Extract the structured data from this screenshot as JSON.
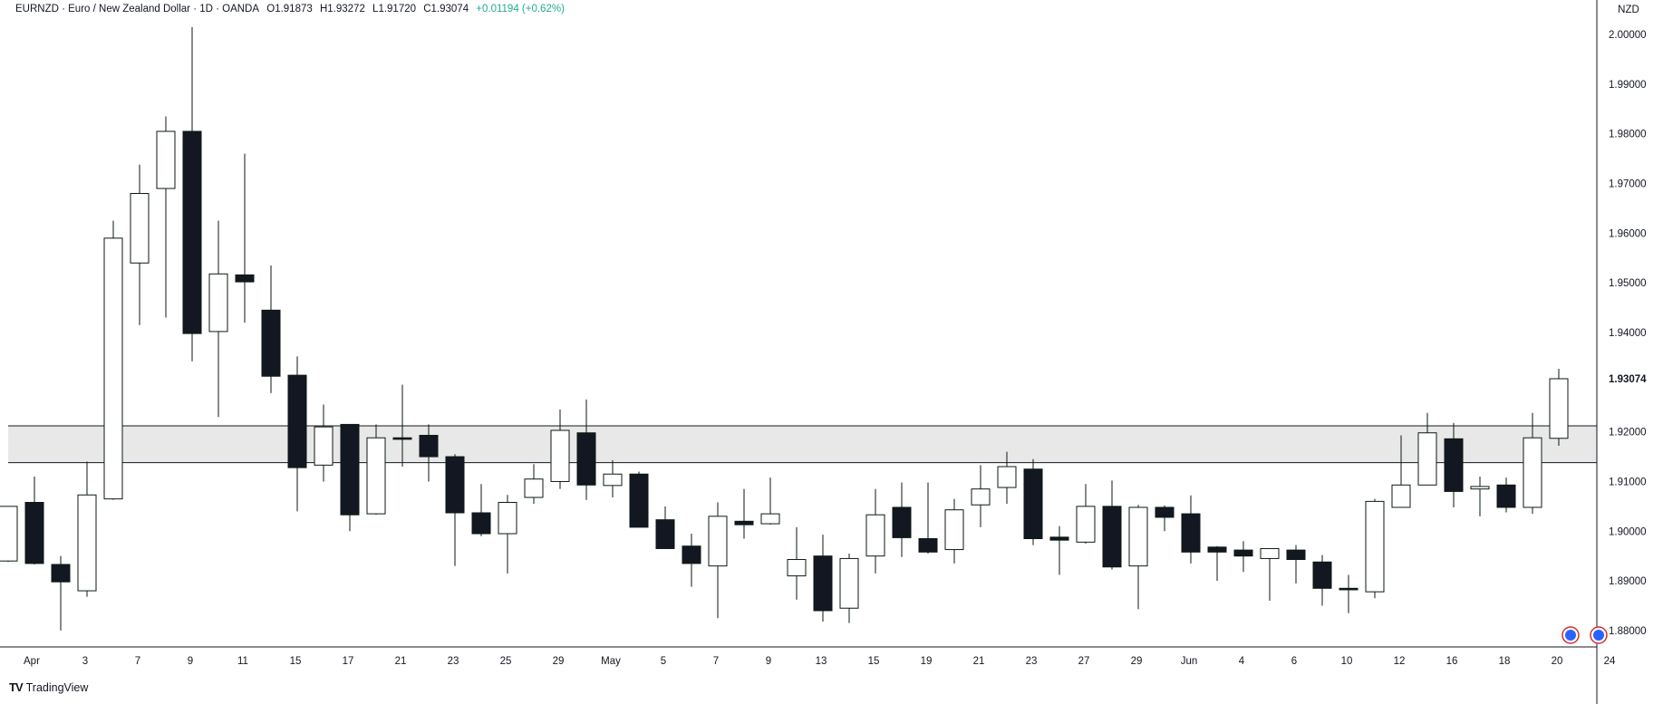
{
  "header": {
    "symbol": "EURNZD · Euro / New Zealand Dollar · 1D · OANDA",
    "open": "O1.91873",
    "high": "H1.93272",
    "low": "L1.91720",
    "close": "C1.93074",
    "change": "+0.01194 (+0.62%)"
  },
  "price_axis": {
    "currency": "NZD"
  },
  "brand": {
    "logo": "TV",
    "name": "TradingView"
  },
  "colors": {
    "up_fill": "#ffffff",
    "up_border": "#0b1a10",
    "down_fill": "#131722",
    "grid": "none",
    "zone_fill": "#e8e8e8",
    "change": "#22ab94"
  },
  "chart_data": {
    "type": "candlestick",
    "grid": false,
    "ylim": [
      1.8767,
      2.0033
    ],
    "yticks": [
      "2.00000",
      "1.99000",
      "1.98000",
      "1.97000",
      "1.96000",
      "1.95000",
      "1.94000",
      "1.93074",
      "1.92000",
      "1.91000",
      "1.90000",
      "1.89000",
      "1.88000"
    ],
    "last_price": "1.93074",
    "x_labels": [
      "Apr",
      "3",
      "7",
      "9",
      "11",
      "15",
      "17",
      "21",
      "23",
      "25",
      "29",
      "May",
      "5",
      "7",
      "9",
      "13",
      "15",
      "19",
      "21",
      "23",
      "27",
      "29",
      "Jun",
      "4",
      "6",
      "10",
      "12",
      "16",
      "18",
      "20",
      "24"
    ],
    "zone": {
      "top": 1.9212,
      "bottom": 1.9138
    },
    "candles": [
      {
        "o": 1.894,
        "h": 1.905,
        "l": 1.8938,
        "c": 1.905
      },
      {
        "o": 1.9058,
        "h": 1.911,
        "l": 1.8933,
        "c": 1.8935
      },
      {
        "o": 1.8933,
        "h": 1.895,
        "l": 1.88,
        "c": 1.8898
      },
      {
        "o": 1.888,
        "h": 1.914,
        "l": 1.8868,
        "c": 1.9073
      },
      {
        "o": 1.9065,
        "h": 1.9625,
        "l": 1.9063,
        "c": 1.959
      },
      {
        "o": 1.954,
        "h": 1.9738,
        "l": 1.9415,
        "c": 1.968
      },
      {
        "o": 1.969,
        "h": 1.9835,
        "l": 1.943,
        "c": 1.9805
      },
      {
        "o": 1.9805,
        "h": 2.0015,
        "l": 1.9342,
        "c": 1.9398
      },
      {
        "o": 1.9402,
        "h": 1.9625,
        "l": 1.923,
        "c": 1.9518
      },
      {
        "o": 1.9516,
        "h": 1.976,
        "l": 1.942,
        "c": 1.9502
      },
      {
        "o": 1.9445,
        "h": 1.9535,
        "l": 1.9278,
        "c": 1.9312
      },
      {
        "o": 1.9314,
        "h": 1.9352,
        "l": 1.904,
        "c": 1.9128
      },
      {
        "o": 1.9133,
        "h": 1.9255,
        "l": 1.91,
        "c": 1.921
      },
      {
        "o": 1.9215,
        "h": 1.9215,
        "l": 1.9,
        "c": 1.9033
      },
      {
        "o": 1.9035,
        "h": 1.9215,
        "l": 1.9033,
        "c": 1.9188
      },
      {
        "o": 1.9188,
        "h": 1.9295,
        "l": 1.913,
        "c": 1.9185
      },
      {
        "o": 1.9193,
        "h": 1.9215,
        "l": 1.91,
        "c": 1.915
      },
      {
        "o": 1.915,
        "h": 1.9155,
        "l": 1.893,
        "c": 1.9037
      },
      {
        "o": 1.9037,
        "h": 1.9095,
        "l": 1.899,
        "c": 1.8995
      },
      {
        "o": 1.8995,
        "h": 1.9073,
        "l": 1.8915,
        "c": 1.9058
      },
      {
        "o": 1.9068,
        "h": 1.9135,
        "l": 1.9055,
        "c": 1.9105
      },
      {
        "o": 1.91,
        "h": 1.9245,
        "l": 1.9085,
        "c": 1.9203
      },
      {
        "o": 1.9198,
        "h": 1.9265,
        "l": 1.9063,
        "c": 1.9093
      },
      {
        "o": 1.9092,
        "h": 1.9143,
        "l": 1.9068,
        "c": 1.9115
      },
      {
        "o": 1.9115,
        "h": 1.912,
        "l": 1.901,
        "c": 1.9008
      },
      {
        "o": 1.9023,
        "h": 1.905,
        "l": 1.8968,
        "c": 1.8965
      },
      {
        "o": 1.897,
        "h": 1.8995,
        "l": 1.8888,
        "c": 1.8935
      },
      {
        "o": 1.893,
        "h": 1.9058,
        "l": 1.8825,
        "c": 1.903
      },
      {
        "o": 1.902,
        "h": 1.9085,
        "l": 1.8985,
        "c": 1.9013
      },
      {
        "o": 1.9015,
        "h": 1.9108,
        "l": 1.9013,
        "c": 1.9035
      },
      {
        "o": 1.891,
        "h": 1.9008,
        "l": 1.8862,
        "c": 1.8943
      },
      {
        "o": 1.895,
        "h": 1.8993,
        "l": 1.8818,
        "c": 1.884
      },
      {
        "o": 1.8845,
        "h": 1.8955,
        "l": 1.8815,
        "c": 1.8945
      },
      {
        "o": 1.895,
        "h": 1.9085,
        "l": 1.8915,
        "c": 1.9033
      },
      {
        "o": 1.9048,
        "h": 1.9098,
        "l": 1.8948,
        "c": 1.8987
      },
      {
        "o": 1.8985,
        "h": 1.9098,
        "l": 1.8955,
        "c": 1.8958
      },
      {
        "o": 1.8963,
        "h": 1.9065,
        "l": 1.8935,
        "c": 1.9043
      },
      {
        "o": 1.9053,
        "h": 1.9133,
        "l": 1.9008,
        "c": 1.9085
      },
      {
        "o": 1.9088,
        "h": 1.916,
        "l": 1.9055,
        "c": 1.913
      },
      {
        "o": 1.9125,
        "h": 1.9145,
        "l": 1.8972,
        "c": 1.8985
      },
      {
        "o": 1.8988,
        "h": 1.901,
        "l": 1.8912,
        "c": 1.8982
      },
      {
        "o": 1.8978,
        "h": 1.9095,
        "l": 1.8975,
        "c": 1.905
      },
      {
        "o": 1.905,
        "h": 1.9102,
        "l": 1.8923,
        "c": 1.8928
      },
      {
        "o": 1.893,
        "h": 1.9053,
        "l": 1.8843,
        "c": 1.9048
      },
      {
        "o": 1.9048,
        "h": 1.9052,
        "l": 1.9,
        "c": 1.9028
      },
      {
        "o": 1.9035,
        "h": 1.9072,
        "l": 1.8935,
        "c": 1.8958
      },
      {
        "o": 1.8968,
        "h": 1.897,
        "l": 1.89,
        "c": 1.8958
      },
      {
        "o": 1.8962,
        "h": 1.898,
        "l": 1.8918,
        "c": 1.895
      },
      {
        "o": 1.8945,
        "h": 1.8965,
        "l": 1.886,
        "c": 1.8965
      },
      {
        "o": 1.8962,
        "h": 1.8972,
        "l": 1.8895,
        "c": 1.8943
      },
      {
        "o": 1.8938,
        "h": 1.8952,
        "l": 1.885,
        "c": 1.8885
      },
      {
        "o": 1.8885,
        "h": 1.8912,
        "l": 1.8835,
        "c": 1.8882
      },
      {
        "o": 1.8878,
        "h": 1.9065,
        "l": 1.8865,
        "c": 1.906
      },
      {
        "o": 1.9048,
        "h": 1.9193,
        "l": 1.9048,
        "c": 1.9093
      },
      {
        "o": 1.9093,
        "h": 1.9238,
        "l": 1.9093,
        "c": 1.9198
      },
      {
        "o": 1.9186,
        "h": 1.9218,
        "l": 1.9048,
        "c": 1.908
      },
      {
        "o": 1.9085,
        "h": 1.911,
        "l": 1.903,
        "c": 1.909
      },
      {
        "o": 1.9093,
        "h": 1.9108,
        "l": 1.9038,
        "c": 1.9048
      },
      {
        "o": 1.9048,
        "h": 1.9238,
        "l": 1.9035,
        "c": 1.9188
      },
      {
        "o": 1.9187,
        "h": 1.9327,
        "l": 1.9172,
        "c": 1.9307
      }
    ]
  }
}
